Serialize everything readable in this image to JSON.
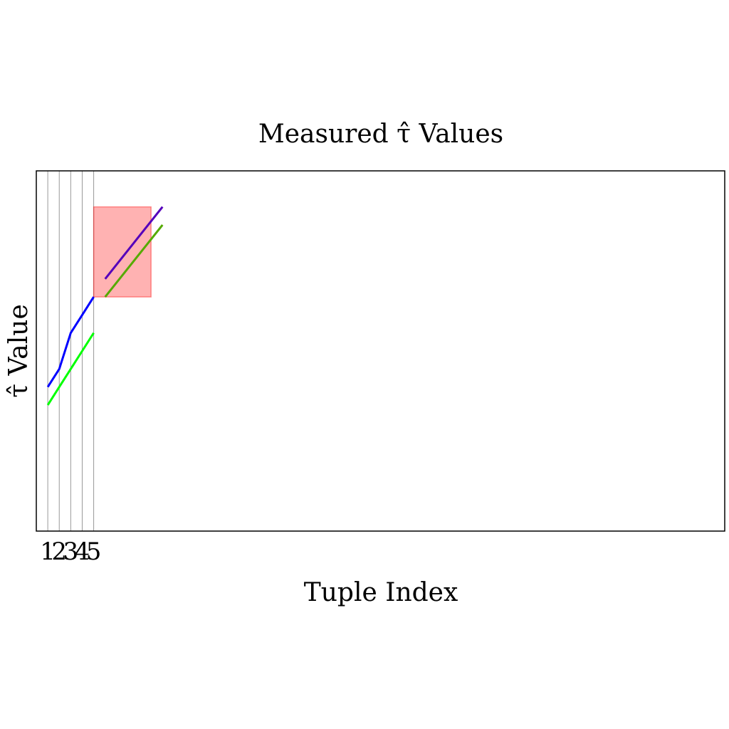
{
  "chart_data": {
    "type": "line",
    "title": "Measured τ̂ Values",
    "xlabel": "Tuple Index",
    "ylabel": "τ̂ Value",
    "x_ticks": [
      "1",
      "2",
      "3",
      "4",
      "5"
    ],
    "xlim": [
      0,
      60
    ],
    "ylim": [
      0,
      20
    ],
    "grid": "vertical lines at ticks 1–5",
    "colors": {
      "series_blue": "#0000ff",
      "series_green": "#00ff00",
      "overlay_purple": "#5500bb",
      "overlay_olive": "#55aa00",
      "highlight_fill": "#ff0000",
      "grid": "#999999"
    },
    "series": [
      {
        "key": "blue",
        "values": [
          [
            1,
            8
          ],
          [
            2,
            9
          ],
          [
            3,
            11
          ],
          [
            4,
            12
          ],
          [
            5,
            13
          ]
        ]
      },
      {
        "key": "green",
        "values": [
          [
            1,
            7
          ],
          [
            2,
            8
          ],
          [
            3,
            9
          ],
          [
            4,
            10
          ],
          [
            5,
            11
          ]
        ]
      }
    ],
    "overlays": [
      {
        "key": "purple",
        "values": [
          [
            6,
            14
          ],
          [
            11,
            18
          ]
        ]
      },
      {
        "key": "olive",
        "values": [
          [
            6,
            13
          ],
          [
            11,
            17
          ]
        ]
      }
    ],
    "highlight_region": {
      "x": [
        5,
        10
      ],
      "y": [
        13,
        18
      ]
    }
  }
}
